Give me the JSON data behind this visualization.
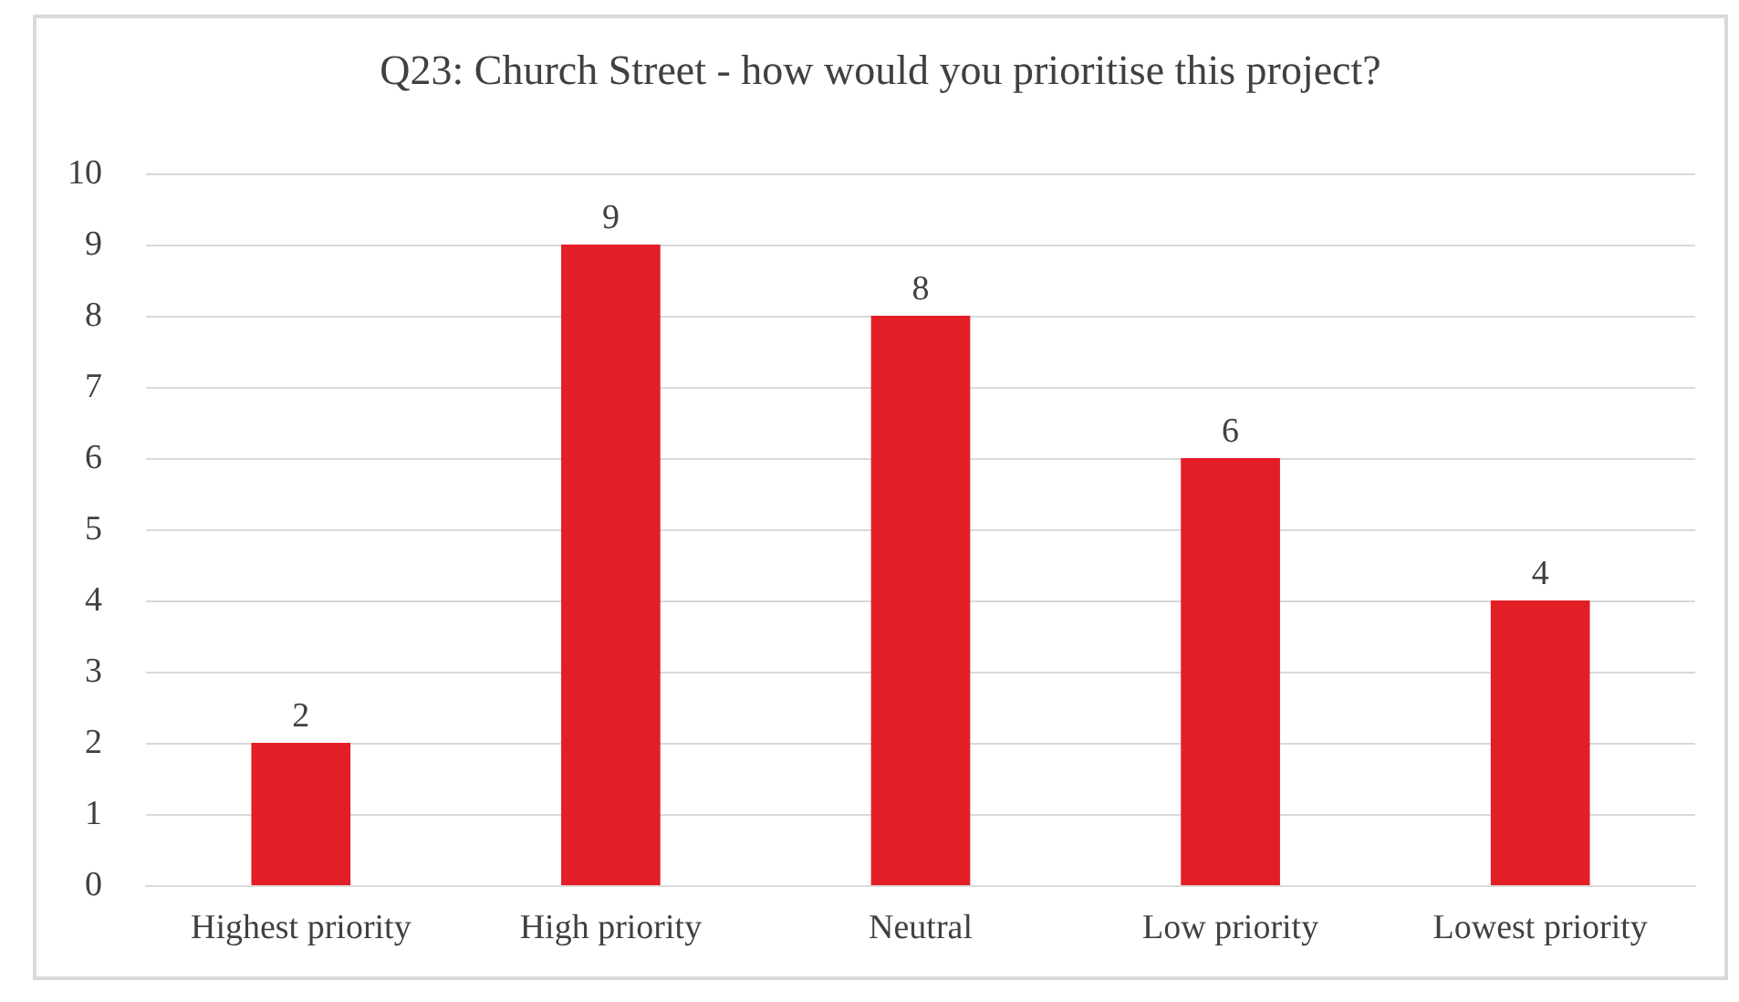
{
  "chart_data": {
    "type": "bar",
    "title": "Q23: Church Street - how would you prioritise this project?",
    "categories": [
      "Highest priority",
      "High priority",
      "Neutral",
      "Low priority",
      "Lowest priority"
    ],
    "values": [
      2,
      9,
      8,
      6,
      4
    ],
    "color": "#e41e26",
    "ylim": [
      0,
      10
    ],
    "yticks": [
      0,
      1,
      2,
      3,
      4,
      5,
      6,
      7,
      8,
      9,
      10
    ],
    "grid": "y",
    "data_labels": true
  }
}
